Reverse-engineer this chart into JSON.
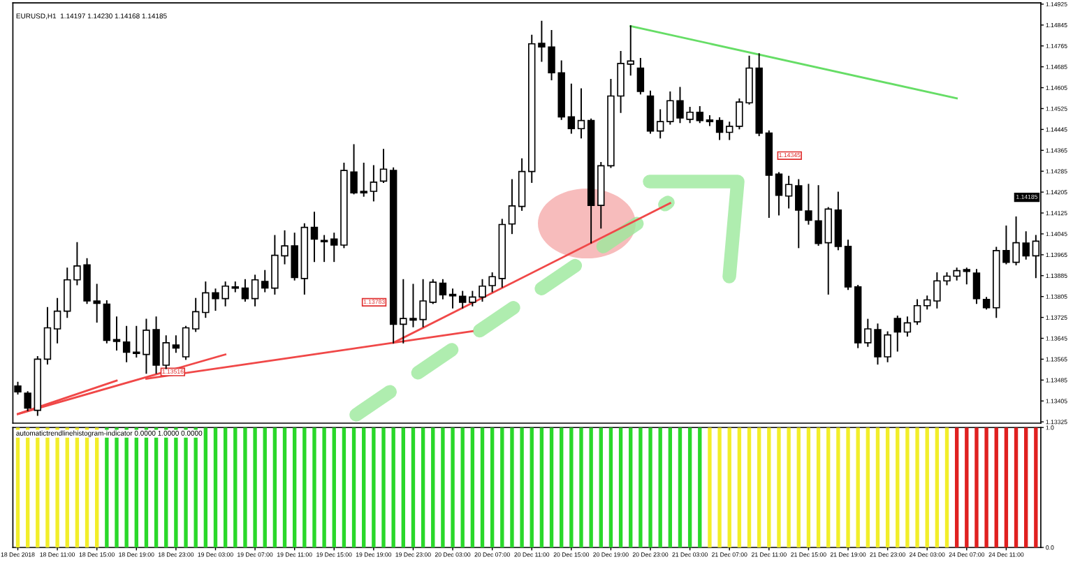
{
  "chart_data": [
    {
      "type": "candlestick",
      "title": "EURUSD,H1  1.14197 1.14230 1.14168 1.14185",
      "color": "#000000",
      "categories": [
        null,
        null,
        null,
        null,
        null,
        null,
        null,
        null,
        null,
        null,
        null,
        null,
        null,
        null,
        null,
        null,
        null,
        null,
        null,
        null,
        null,
        null,
        null,
        null,
        null,
        null,
        null,
        null,
        null,
        null,
        null,
        null,
        null,
        null,
        null,
        null,
        null,
        null,
        null,
        null,
        null,
        null,
        null,
        null,
        null,
        null,
        null,
        null,
        null,
        null,
        null,
        null,
        null,
        null,
        null,
        null,
        null,
        null,
        null,
        null,
        null,
        null,
        null,
        null,
        null,
        null,
        null,
        null,
        null,
        null,
        null,
        null,
        null,
        null,
        null,
        null,
        null,
        null,
        null,
        null,
        null,
        null,
        null,
        null,
        null,
        null,
        null,
        null,
        null,
        null,
        null,
        null,
        null,
        null,
        null,
        null,
        null,
        null,
        null,
        null,
        null,
        null,
        null,
        null
      ],
      "ohlc": [
        [
          1.13462,
          1.13476,
          1.13432,
          1.1344
        ],
        [
          1.13435,
          1.1344,
          1.13369,
          1.13378
        ],
        [
          1.13369,
          1.13574,
          1.13351,
          1.13565
        ],
        [
          1.13565,
          1.13762,
          1.13547,
          1.13685
        ],
        [
          1.13681,
          1.13797,
          1.13628,
          1.13749
        ],
        [
          1.13749,
          1.13913,
          1.13726,
          1.13869
        ],
        [
          1.13869,
          1.14011,
          1.13851,
          1.13922
        ],
        [
          1.13926,
          1.13949,
          1.13779,
          1.13788
        ],
        [
          1.13788,
          1.13851,
          1.13708,
          1.13779
        ],
        [
          1.13776,
          1.13788,
          1.13628,
          1.13637
        ],
        [
          1.1364,
          1.13726,
          1.13601,
          1.13633
        ],
        [
          1.13631,
          1.1369,
          1.13556,
          1.13592
        ],
        [
          1.13592,
          1.1369,
          1.13574,
          1.13587
        ],
        [
          1.13583,
          1.13717,
          1.13512,
          1.13676
        ],
        [
          1.13678,
          1.13726,
          1.13512,
          1.13542
        ],
        [
          1.13542,
          1.13654,
          1.1353,
          1.13628
        ],
        [
          1.13619,
          1.13654,
          1.13592,
          1.13608
        ],
        [
          1.13574,
          1.1369,
          1.13565,
          1.13685
        ],
        [
          1.13681,
          1.13797,
          1.13672,
          1.13747
        ],
        [
          1.13744,
          1.1386,
          1.13726,
          1.13819
        ],
        [
          1.13819,
          1.13833,
          1.13753,
          1.13797
        ],
        [
          1.13797,
          1.1386,
          1.1377,
          1.13845
        ],
        [
          1.13842,
          1.1386,
          1.13824,
          1.13837
        ],
        [
          1.13837,
          1.13869,
          1.13788,
          1.13797
        ],
        [
          1.13797,
          1.13886,
          1.1377,
          1.13869
        ],
        [
          1.13863,
          1.13904,
          1.13824,
          1.13838
        ],
        [
          1.13837,
          1.14038,
          1.13815,
          1.13963
        ],
        [
          1.13961,
          1.14056,
          1.13931,
          1.13999
        ],
        [
          1.13999,
          1.14047,
          1.13869,
          1.13878
        ],
        [
          1.13874,
          1.14083,
          1.13815,
          1.1407
        ],
        [
          1.1407,
          1.14127,
          1.1394,
          1.14025
        ],
        [
          1.1402,
          1.14038,
          1.1394,
          1.14015
        ],
        [
          1.14025,
          1.14047,
          1.1394,
          1.14002
        ],
        [
          1.14002,
          1.14315,
          1.13993,
          1.14288
        ],
        [
          1.14282,
          1.14386,
          1.14199,
          1.14202
        ],
        [
          1.14208,
          1.14315,
          1.1419,
          1.14202
        ],
        [
          1.14208,
          1.14306,
          1.14172,
          1.14243
        ],
        [
          1.14247,
          1.14368,
          1.14243,
          1.14293
        ],
        [
          1.14288,
          1.14297,
          1.13628,
          1.13699
        ],
        [
          1.13699,
          1.13869,
          1.13628,
          1.13721
        ],
        [
          1.13721,
          1.13851,
          1.1369,
          1.13715
        ],
        [
          1.13717,
          1.13869,
          1.1369,
          1.13788
        ],
        [
          1.13783,
          1.13869,
          1.13779,
          1.1386
        ],
        [
          1.13856,
          1.13869,
          1.13797,
          1.13812
        ],
        [
          1.13813,
          1.13833,
          1.13762,
          1.13808
        ],
        [
          1.13806,
          1.13824,
          1.13762,
          1.13783
        ],
        [
          1.13783,
          1.13824,
          1.1377,
          1.13803
        ],
        [
          1.13803,
          1.13869,
          1.13788,
          1.13845
        ],
        [
          1.13847,
          1.13895,
          1.13824,
          1.13881
        ],
        [
          1.13874,
          1.141,
          1.13842,
          1.14081
        ],
        [
          1.14083,
          1.14252,
          1.14047,
          1.14152
        ],
        [
          1.1415,
          1.14332,
          1.14136,
          1.14284
        ],
        [
          1.14284,
          1.14805,
          1.14243,
          1.14773
        ],
        [
          1.14775,
          1.14859,
          1.14707,
          1.14761
        ],
        [
          1.14761,
          1.14823,
          1.14636,
          1.14662
        ],
        [
          1.14662,
          1.14707,
          1.14484,
          1.14493
        ],
        [
          1.14493,
          1.14618,
          1.14431,
          1.14448
        ],
        [
          1.14448,
          1.146,
          1.14413,
          1.14479
        ],
        [
          1.14479,
          1.14484,
          1.14011,
          1.14154
        ],
        [
          1.14154,
          1.14318,
          1.14068,
          1.14306
        ],
        [
          1.14306,
          1.14636,
          1.143,
          1.14573
        ],
        [
          1.14573,
          1.14743,
          1.14511,
          1.14698
        ],
        [
          1.14695,
          1.14841,
          1.14654,
          1.14707
        ],
        [
          1.1468,
          1.14716,
          1.14582,
          1.14591
        ],
        [
          1.14573,
          1.14591,
          1.14431,
          1.14439
        ],
        [
          1.14439,
          1.1452,
          1.14413,
          1.14475
        ],
        [
          1.14475,
          1.14588,
          1.14466,
          1.14555
        ],
        [
          1.14555,
          1.14605,
          1.14472,
          1.14489
        ],
        [
          1.14484,
          1.14529,
          1.14472,
          1.14511
        ],
        [
          1.14511,
          1.14532,
          1.14472,
          1.14479
        ],
        [
          1.14481,
          1.14497,
          1.14461,
          1.14475
        ],
        [
          1.14479,
          1.14489,
          1.14407,
          1.14434
        ],
        [
          1.14434,
          1.14472,
          1.14407,
          1.14457
        ],
        [
          1.14457,
          1.14561,
          1.14448,
          1.1455
        ],
        [
          1.14547,
          1.14725,
          1.14543,
          1.1468
        ],
        [
          1.1468,
          1.14734,
          1.14422,
          1.14431
        ],
        [
          1.14431,
          1.14439,
          1.14109,
          1.1427
        ],
        [
          1.14274,
          1.14279,
          1.14118,
          1.14193
        ],
        [
          1.1419,
          1.14265,
          1.14145,
          1.14234
        ],
        [
          1.14229,
          1.14252,
          1.13993,
          1.14136
        ],
        [
          1.14133,
          1.14234,
          1.14083,
          1.14097
        ],
        [
          1.14095,
          1.14229,
          1.14002,
          1.14008
        ],
        [
          1.14011,
          1.14145,
          1.13815,
          1.1414
        ],
        [
          1.14136,
          1.14204,
          1.13985,
          1.13997
        ],
        [
          1.13997,
          1.1402,
          1.13833,
          1.13842
        ],
        [
          1.13842,
          1.13847,
          1.1361,
          1.13628
        ],
        [
          1.13628,
          1.13717,
          1.13615,
          1.13681
        ],
        [
          1.13678,
          1.13699,
          1.13547,
          1.13574
        ],
        [
          1.13574,
          1.13669,
          1.13556,
          1.13658
        ],
        [
          1.13721,
          1.13729,
          1.13597,
          1.13669
        ],
        [
          1.13669,
          1.13726,
          1.13654,
          1.13704
        ],
        [
          1.13708,
          1.13792,
          1.13699,
          1.1377
        ],
        [
          1.1377,
          1.13806,
          1.13758,
          1.13792
        ],
        [
          1.13788,
          1.13895,
          1.13762,
          1.13865
        ],
        [
          1.13865,
          1.13895,
          1.13851,
          1.13883
        ],
        [
          1.13883,
          1.13913,
          1.13869,
          1.13904
        ],
        [
          1.13908,
          1.13913,
          1.13854,
          1.13901
        ],
        [
          1.13895,
          1.13908,
          1.13779,
          1.13797
        ],
        [
          1.13794,
          1.13801,
          1.13758,
          1.13762
        ],
        [
          1.13762,
          1.13993,
          1.13726,
          1.13981
        ],
        [
          1.13981,
          1.14074,
          1.13931,
          1.13936
        ],
        [
          1.13936,
          1.14109,
          1.13927,
          1.14011
        ],
        [
          1.1401,
          1.14052,
          1.13949,
          1.13961
        ],
        [
          1.13961,
          1.14038,
          1.13878,
          1.14017
        ]
      ],
      "series": [
        {
          "type": "line",
          "color": "#f04848",
          "values": [
            1.13355,
            null,
            null,
            null,
            null,
            null,
            null,
            null,
            null,
            null,
            1.13483,
            null,
            null,
            null,
            null,
            null,
            null,
            null,
            null,
            null,
            null,
            null,
            null,
            null,
            null,
            null,
            null,
            null,
            null,
            null,
            null,
            null,
            null,
            null,
            null,
            null,
            null,
            null,
            null,
            null,
            null,
            null,
            null,
            null,
            null,
            null,
            null,
            null,
            null,
            null,
            null,
            null,
            null,
            null,
            null,
            null,
            null,
            null,
            null,
            null,
            null,
            null,
            null,
            null,
            null,
            null,
            null,
            null,
            null,
            null,
            null,
            null,
            null,
            null,
            null,
            null,
            null,
            null,
            null,
            null,
            null,
            null,
            null,
            null,
            null,
            null,
            null,
            null,
            null,
            null,
            null,
            null,
            null,
            null,
            null,
            null,
            null,
            null,
            null,
            null,
            null,
            null,
            null,
            null
          ]
        },
        {
          "type": "line",
          "color": "#f04848",
          "values": [
            1.13355,
            null,
            null,
            null,
            null,
            null,
            null,
            null,
            null,
            null,
            null,
            null,
            null,
            null,
            null,
            null,
            null,
            null,
            null,
            null,
            null,
            1.13583,
            null,
            null,
            null,
            null,
            null,
            null,
            null,
            null,
            null,
            null,
            null,
            null,
            null,
            null,
            null,
            null,
            null,
            null,
            null,
            null,
            null,
            null,
            null,
            null,
            null,
            null,
            null,
            null,
            null,
            null,
            null,
            null,
            null,
            null,
            null,
            null,
            null,
            null,
            null,
            null,
            null,
            null,
            null,
            null,
            null,
            null,
            null,
            null,
            null,
            null,
            null,
            null,
            null,
            null,
            null,
            null,
            null,
            null,
            null,
            null,
            null,
            null,
            null,
            null,
            null,
            null,
            null,
            null,
            null,
            null,
            null,
            null,
            null,
            null,
            null,
            null,
            null,
            null,
            null,
            null,
            null,
            null
          ]
        },
        {
          "type": "line",
          "color": "#f04848",
          "values": [
            null,
            null,
            null,
            null,
            null,
            null,
            null,
            null,
            null,
            null,
            null,
            null,
            null,
            1.1349,
            null,
            null,
            null,
            null,
            null,
            null,
            null,
            null,
            null,
            null,
            null,
            null,
            null,
            null,
            null,
            null,
            null,
            null,
            null,
            null,
            null,
            null,
            null,
            null,
            null,
            null,
            null,
            null,
            null,
            null,
            null,
            null,
            1.13672,
            null,
            null,
            null,
            null,
            null,
            null,
            null,
            null,
            null,
            null,
            null,
            null,
            null,
            null,
            null,
            null,
            null,
            null,
            null,
            null,
            null,
            null,
            null,
            null,
            null,
            null,
            null,
            null,
            null,
            null,
            null,
            null,
            null,
            null,
            null,
            null,
            null,
            null,
            null,
            null,
            null,
            null,
            null,
            null,
            null,
            null,
            null,
            null,
            null,
            null,
            null,
            null,
            null,
            null,
            null,
            null,
            null
          ]
        },
        {
          "type": "line",
          "color": "#f04848",
          "values": [
            null,
            null,
            null,
            null,
            null,
            null,
            null,
            null,
            null,
            null,
            null,
            null,
            null,
            null,
            null,
            null,
            null,
            null,
            null,
            null,
            null,
            null,
            null,
            null,
            null,
            null,
            null,
            null,
            null,
            null,
            null,
            null,
            null,
            null,
            null,
            null,
            null,
            null,
            1.13628,
            null,
            null,
            null,
            null,
            null,
            null,
            null,
            null,
            null,
            null,
            null,
            null,
            null,
            null,
            null,
            null,
            null,
            null,
            null,
            null,
            null,
            null,
            null,
            null,
            null,
            null,
            null,
            1.14163,
            null,
            null,
            null,
            null,
            null,
            null,
            null,
            null,
            null,
            null,
            null,
            null,
            null,
            null,
            null,
            null,
            null,
            null,
            null,
            null,
            null,
            null,
            null,
            null,
            null,
            null,
            null,
            null,
            null,
            null,
            null,
            null,
            null,
            null,
            null,
            null,
            null
          ]
        },
        {
          "type": "line",
          "color": "#66dd66",
          "values": [
            null,
            null,
            null,
            null,
            null,
            null,
            null,
            null,
            null,
            null,
            null,
            null,
            null,
            null,
            null,
            null,
            null,
            null,
            null,
            null,
            null,
            null,
            null,
            null,
            null,
            null,
            null,
            null,
            null,
            null,
            null,
            null,
            null,
            null,
            null,
            null,
            null,
            null,
            null,
            null,
            null,
            null,
            null,
            null,
            null,
            null,
            null,
            null,
            null,
            null,
            null,
            null,
            null,
            null,
            null,
            null,
            null,
            null,
            null,
            null,
            null,
            null,
            1.14841,
            null,
            null,
            null,
            null,
            null,
            null,
            null,
            null,
            null,
            null,
            null,
            null,
            null,
            null,
            null,
            null,
            null,
            null,
            null,
            null,
            null,
            null,
            null,
            null,
            null,
            null,
            null,
            null,
            null,
            null,
            null,
            null,
            1.14564,
            null,
            null,
            null,
            null,
            null,
            null,
            null,
            null
          ]
        }
      ],
      "annotations": [
        {
          "text": "1.13516",
          "y": 1.13516
        },
        {
          "text": "1.13783",
          "y": 1.13783
        },
        {
          "text": "1.14345",
          "y": 1.14345
        },
        {
          "text": "1.14185",
          "y": 1.14185
        }
      ],
      "ylim": [
        1.1332,
        1.1493
      ],
      "yticks": [
        1.13325,
        1.13405,
        1.13485,
        1.13565,
        1.13645,
        1.13725,
        1.13805,
        1.13885,
        1.13965,
        1.14045,
        1.14125,
        1.14205,
        1.14285,
        1.14365,
        1.14445,
        1.14525,
        1.14605,
        1.14685,
        1.14765,
        1.14845,
        1.14925
      ],
      "tick_labels": "y",
      "legend": false,
      "grid": false
    },
    {
      "type": "bar",
      "title": "automatictrendlinehistogram-indicator 0.0000 1.0000 0.0000",
      "categories": [
        "18 Dec 2018",
        null,
        null,
        null,
        "18 Dec 11:00",
        null,
        null,
        null,
        "18 Dec 15:00",
        null,
        null,
        null,
        "18 Dec 19:00",
        null,
        null,
        null,
        "18 Dec 23:00",
        null,
        null,
        null,
        "19 Dec 03:00",
        null,
        null,
        null,
        "19 Dec 07:00",
        null,
        null,
        null,
        "19 Dec 11:00",
        null,
        null,
        null,
        "19 Dec 15:00",
        null,
        null,
        null,
        "19 Dec 19:00",
        null,
        null,
        null,
        "19 Dec 23:00",
        null,
        null,
        null,
        "20 Dec 03:00",
        null,
        null,
        null,
        "20 Dec 07:00",
        null,
        null,
        null,
        "20 Dec 11:00",
        null,
        null,
        null,
        "20 Dec 15:00",
        null,
        null,
        null,
        "20 Dec 19:00",
        null,
        null,
        null,
        "20 Dec 23:00",
        null,
        null,
        null,
        "21 Dec 03:00",
        null,
        null,
        null,
        "21 Dec 07:00",
        null,
        null,
        null,
        "21 Dec 11:00",
        null,
        null,
        null,
        "21 Dec 15:00",
        null,
        null,
        null,
        "21 Dec 19:00",
        null,
        null,
        null,
        "21 Dec 23:00",
        null,
        null,
        null,
        "24 Dec 03:00",
        null,
        null,
        null,
        "24 Dec 07:00",
        null,
        null,
        null,
        "24 Dec 11:00",
        null,
        null,
        null
      ],
      "values": [
        1,
        1,
        1,
        1,
        1,
        1,
        1,
        1,
        1,
        1,
        1,
        1,
        1,
        1,
        1,
        1,
        1,
        1,
        1,
        1,
        1,
        1,
        1,
        1,
        1,
        1,
        1,
        1,
        1,
        1,
        1,
        1,
        1,
        1,
        1,
        1,
        1,
        1,
        1,
        1,
        1,
        1,
        1,
        1,
        1,
        1,
        1,
        1,
        1,
        1,
        1,
        1,
        1,
        1,
        1,
        1,
        1,
        1,
        1,
        1,
        1,
        1,
        1,
        1,
        1,
        1,
        1,
        1,
        1,
        1,
        1,
        1,
        1,
        1,
        1,
        1,
        1,
        1,
        1,
        1,
        1,
        1,
        1,
        1,
        1,
        1,
        1,
        1,
        1,
        1,
        1,
        1,
        1,
        1,
        1,
        1,
        1,
        1,
        1,
        1,
        1,
        1,
        1,
        1
      ],
      "colors": [
        "#f2ee2a",
        "#f2ee2a",
        "#f2ee2a",
        "#f2ee2a",
        "#f2ee2a",
        "#f2ee2a",
        "#f2ee2a",
        "#f2ee2a",
        "#f2ee2a",
        "#2ad82a",
        "#2ad82a",
        "#2ad82a",
        "#2ad82a",
        "#2ad82a",
        "#2ad82a",
        "#2ad82a",
        "#2ad82a",
        "#2ad82a",
        "#2ad82a",
        "#2ad82a",
        "#2ad82a",
        "#2ad82a",
        "#2ad82a",
        "#2ad82a",
        "#2ad82a",
        "#2ad82a",
        "#2ad82a",
        "#2ad82a",
        "#2ad82a",
        "#2ad82a",
        "#2ad82a",
        "#2ad82a",
        "#2ad82a",
        "#2ad82a",
        "#2ad82a",
        "#2ad82a",
        "#2ad82a",
        "#2ad82a",
        "#2ad82a",
        "#2ad82a",
        "#2ad82a",
        "#2ad82a",
        "#2ad82a",
        "#2ad82a",
        "#2ad82a",
        "#2ad82a",
        "#2ad82a",
        "#2ad82a",
        "#2ad82a",
        "#2ad82a",
        "#2ad82a",
        "#2ad82a",
        "#2ad82a",
        "#2ad82a",
        "#2ad82a",
        "#2ad82a",
        "#2ad82a",
        "#2ad82a",
        "#2ad82a",
        "#2ad82a",
        "#2ad82a",
        "#2ad82a",
        "#2ad82a",
        "#2ad82a",
        "#2ad82a",
        "#2ad82a",
        "#2ad82a",
        "#2ad82a",
        "#2ad82a",
        "#2ad82a",
        "#f2ee2a",
        "#f2ee2a",
        "#f2ee2a",
        "#f2ee2a",
        "#f2ee2a",
        "#f2ee2a",
        "#f2ee2a",
        "#f2ee2a",
        "#f2ee2a",
        "#f2ee2a",
        "#f2ee2a",
        "#f2ee2a",
        "#f2ee2a",
        "#f2ee2a",
        "#f2ee2a",
        "#f2ee2a",
        "#f2ee2a",
        "#f2ee2a",
        "#f2ee2a",
        "#f2ee2a",
        "#f2ee2a",
        "#f2ee2a",
        "#f2ee2a",
        "#f2ee2a",
        "#f2ee2a",
        "#e02020",
        "#e02020",
        "#e02020",
        "#e02020",
        "#e02020",
        "#e02020",
        "#e02020",
        "#e02020",
        "#e02020"
      ],
      "ylim": [
        0,
        1
      ],
      "yticks": [
        {
          "value": 0,
          "label": "0.0"
        },
        {
          "value": 1,
          "label": "1.0"
        }
      ],
      "legend": false,
      "grid": false
    }
  ]
}
